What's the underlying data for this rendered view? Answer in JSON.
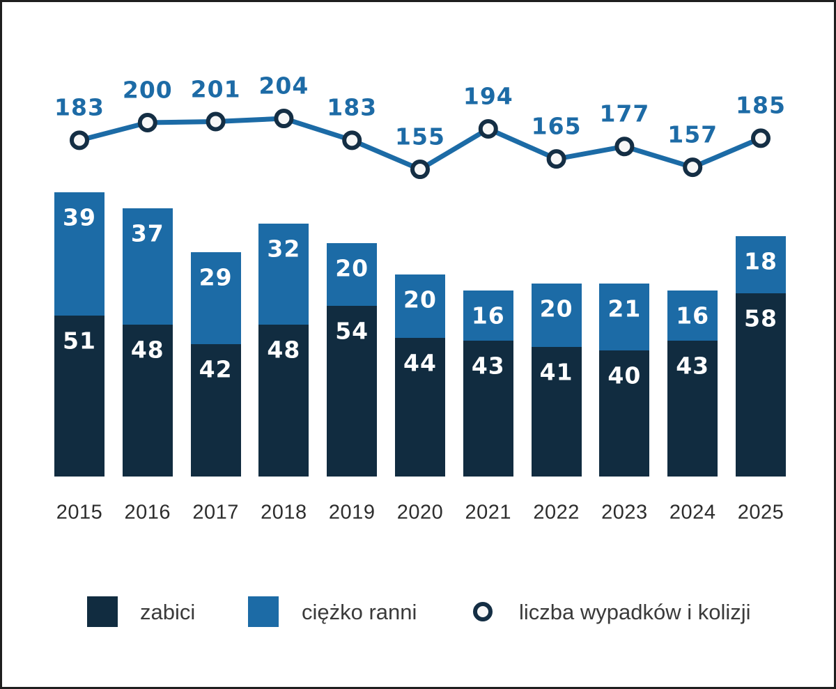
{
  "chart_data": {
    "type": "composite",
    "subtypes": [
      "stacked-bar",
      "line"
    ],
    "categories": [
      "2015",
      "2016",
      "2017",
      "2018",
      "2019",
      "2020",
      "2021",
      "2022",
      "2023",
      "2024",
      "2025"
    ],
    "series": [
      {
        "name": "zabici",
        "type": "bar-stack-bottom",
        "color": "#112c40",
        "values": [
          51,
          48,
          42,
          48,
          54,
          44,
          43,
          41,
          40,
          43,
          58
        ]
      },
      {
        "name": "ciężko ranni",
        "type": "bar-stack-top",
        "color": "#1c6ba6",
        "values": [
          39,
          37,
          29,
          32,
          20,
          20,
          16,
          20,
          21,
          16,
          18
        ]
      },
      {
        "name": "liczba wypadków i kolizji",
        "type": "line",
        "color": "#1c6ba6",
        "marker_fill": "#f7f7f7",
        "marker_ring": "#142e44",
        "values": [
          183,
          200,
          201,
          204,
          183,
          155,
          194,
          165,
          177,
          157,
          185
        ]
      }
    ],
    "title": "",
    "xlabel": "",
    "ylabel": "",
    "grid": false,
    "legend_position": "bottom",
    "bar_label_color": "#ffffff",
    "line_label_color": "#1d6ba6",
    "year_label_color": "#2d2d2d"
  }
}
